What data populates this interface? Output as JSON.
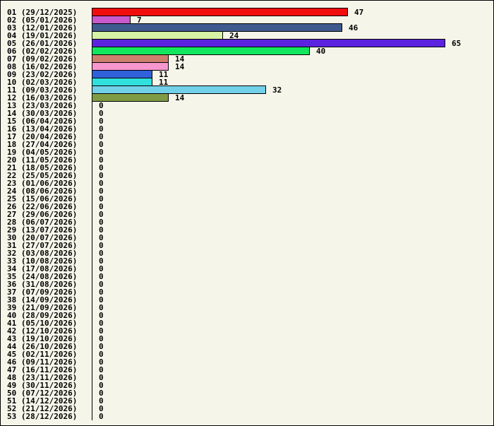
{
  "chart_data": {
    "type": "bar",
    "orientation": "horizontal",
    "title": "",
    "xlabel": "",
    "ylabel": "",
    "xlim": [
      0,
      65
    ],
    "grid": false,
    "categories": [
      "01 (29/12/2025)",
      "02 (05/01/2026)",
      "03 (12/01/2026)",
      "04 (19/01/2026)",
      "05 (26/01/2026)",
      "06 (02/02/2026)",
      "07 (09/02/2026)",
      "08 (16/02/2026)",
      "09 (23/02/2026)",
      "10 (02/03/2026)",
      "11 (09/03/2026)",
      "12 (16/03/2026)",
      "13 (23/03/2026)",
      "14 (30/03/2026)",
      "15 (06/04/2026)",
      "16 (13/04/2026)",
      "17 (20/04/2026)",
      "18 (27/04/2026)",
      "19 (04/05/2026)",
      "20 (11/05/2026)",
      "21 (18/05/2026)",
      "22 (25/05/2026)",
      "23 (01/06/2026)",
      "24 (08/06/2026)",
      "25 (15/06/2026)",
      "26 (22/06/2026)",
      "27 (29/06/2026)",
      "28 (06/07/2026)",
      "29 (13/07/2026)",
      "30 (20/07/2026)",
      "31 (27/07/2026)",
      "32 (03/08/2026)",
      "33 (10/08/2026)",
      "34 (17/08/2026)",
      "35 (24/08/2026)",
      "36 (31/08/2026)",
      "37 (07/09/2026)",
      "38 (14/09/2026)",
      "39 (21/09/2026)",
      "40 (28/09/2026)",
      "41 (05/10/2026)",
      "42 (12/10/2026)",
      "43 (19/10/2026)",
      "44 (26/10/2026)",
      "45 (02/11/2026)",
      "46 (09/11/2026)",
      "47 (16/11/2026)",
      "48 (23/11/2026)",
      "49 (30/11/2026)",
      "50 (07/12/2026)",
      "51 (14/12/2026)",
      "52 (21/12/2026)",
      "53 (28/12/2026)"
    ],
    "values": [
      47,
      7,
      46,
      24,
      65,
      40,
      14,
      14,
      11,
      11,
      32,
      14,
      0,
      0,
      0,
      0,
      0,
      0,
      0,
      0,
      0,
      0,
      0,
      0,
      0,
      0,
      0,
      0,
      0,
      0,
      0,
      0,
      0,
      0,
      0,
      0,
      0,
      0,
      0,
      0,
      0,
      0,
      0,
      0,
      0,
      0,
      0,
      0,
      0,
      0,
      0,
      0,
      0
    ],
    "colors": [
      "#f20d0d",
      "#c95acb",
      "#3e5a8f",
      "#d6f2a4",
      "#5b22e0",
      "#12e65c",
      "#cd7f6d",
      "#f797cf",
      "#3060da",
      "#30e0dc",
      "#72d0e8",
      "#7f9c44"
    ]
  }
}
